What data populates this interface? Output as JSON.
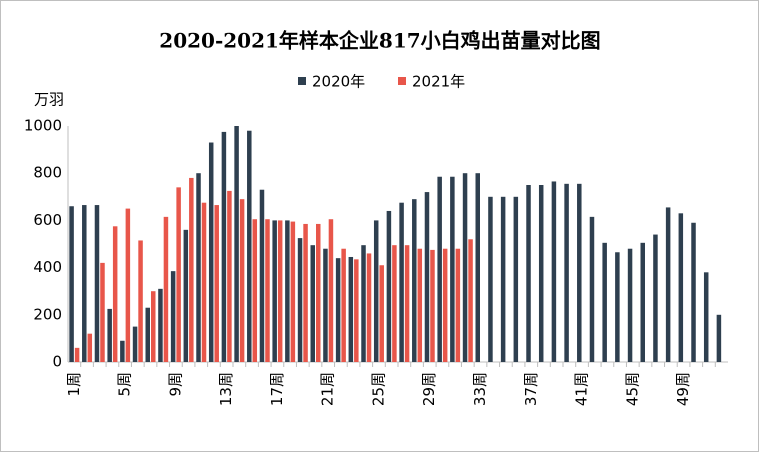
{
  "chart_data": {
    "type": "bar",
    "title": "2020-2021年样本企业817小白鸡出苗量对比图",
    "y_axis_label": "万羽",
    "categories": [
      "1周",
      null,
      null,
      null,
      "5周",
      null,
      null,
      null,
      "9周",
      null,
      null,
      null,
      "13周",
      null,
      null,
      null,
      "17周",
      null,
      null,
      null,
      "21周",
      null,
      null,
      null,
      "25周",
      null,
      null,
      null,
      "29周",
      null,
      null,
      null,
      "33周",
      null,
      null,
      null,
      "37周",
      null,
      null,
      null,
      "41周",
      null,
      null,
      null,
      "45周",
      null,
      null,
      null,
      "49周",
      null,
      null,
      null
    ],
    "series": [
      {
        "name": "2020年",
        "color": "#2e3f4f",
        "values": [
          660,
          665,
          665,
          225,
          90,
          150,
          230,
          310,
          385,
          560,
          800,
          930,
          975,
          1000,
          980,
          730,
          600,
          600,
          525,
          495,
          480,
          440,
          445,
          495,
          600,
          640,
          675,
          690,
          720,
          785,
          785,
          800,
          800,
          700,
          700,
          700,
          750,
          750,
          765,
          755,
          755,
          615,
          505,
          465,
          480,
          505,
          540,
          655,
          630,
          590,
          380,
          200
        ]
      },
      {
        "name": "2021年",
        "color": "#e8564a",
        "values": [
          60,
          120,
          420,
          575,
          650,
          515,
          300,
          615,
          740,
          780,
          675,
          665,
          725,
          690,
          605,
          605,
          600,
          595,
          585,
          585,
          605,
          480,
          435,
          460,
          410,
          495,
          495,
          480,
          475,
          480,
          480,
          520,
          null,
          null,
          null,
          null,
          null,
          null,
          null,
          null,
          null,
          null,
          null,
          null,
          null,
          null,
          null,
          null,
          null,
          null,
          null,
          null
        ]
      }
    ],
    "ylim": [
      0,
      1000
    ],
    "yticks": [
      0,
      200,
      400,
      600,
      800,
      1000
    ],
    "grid": false,
    "legend": "top"
  }
}
